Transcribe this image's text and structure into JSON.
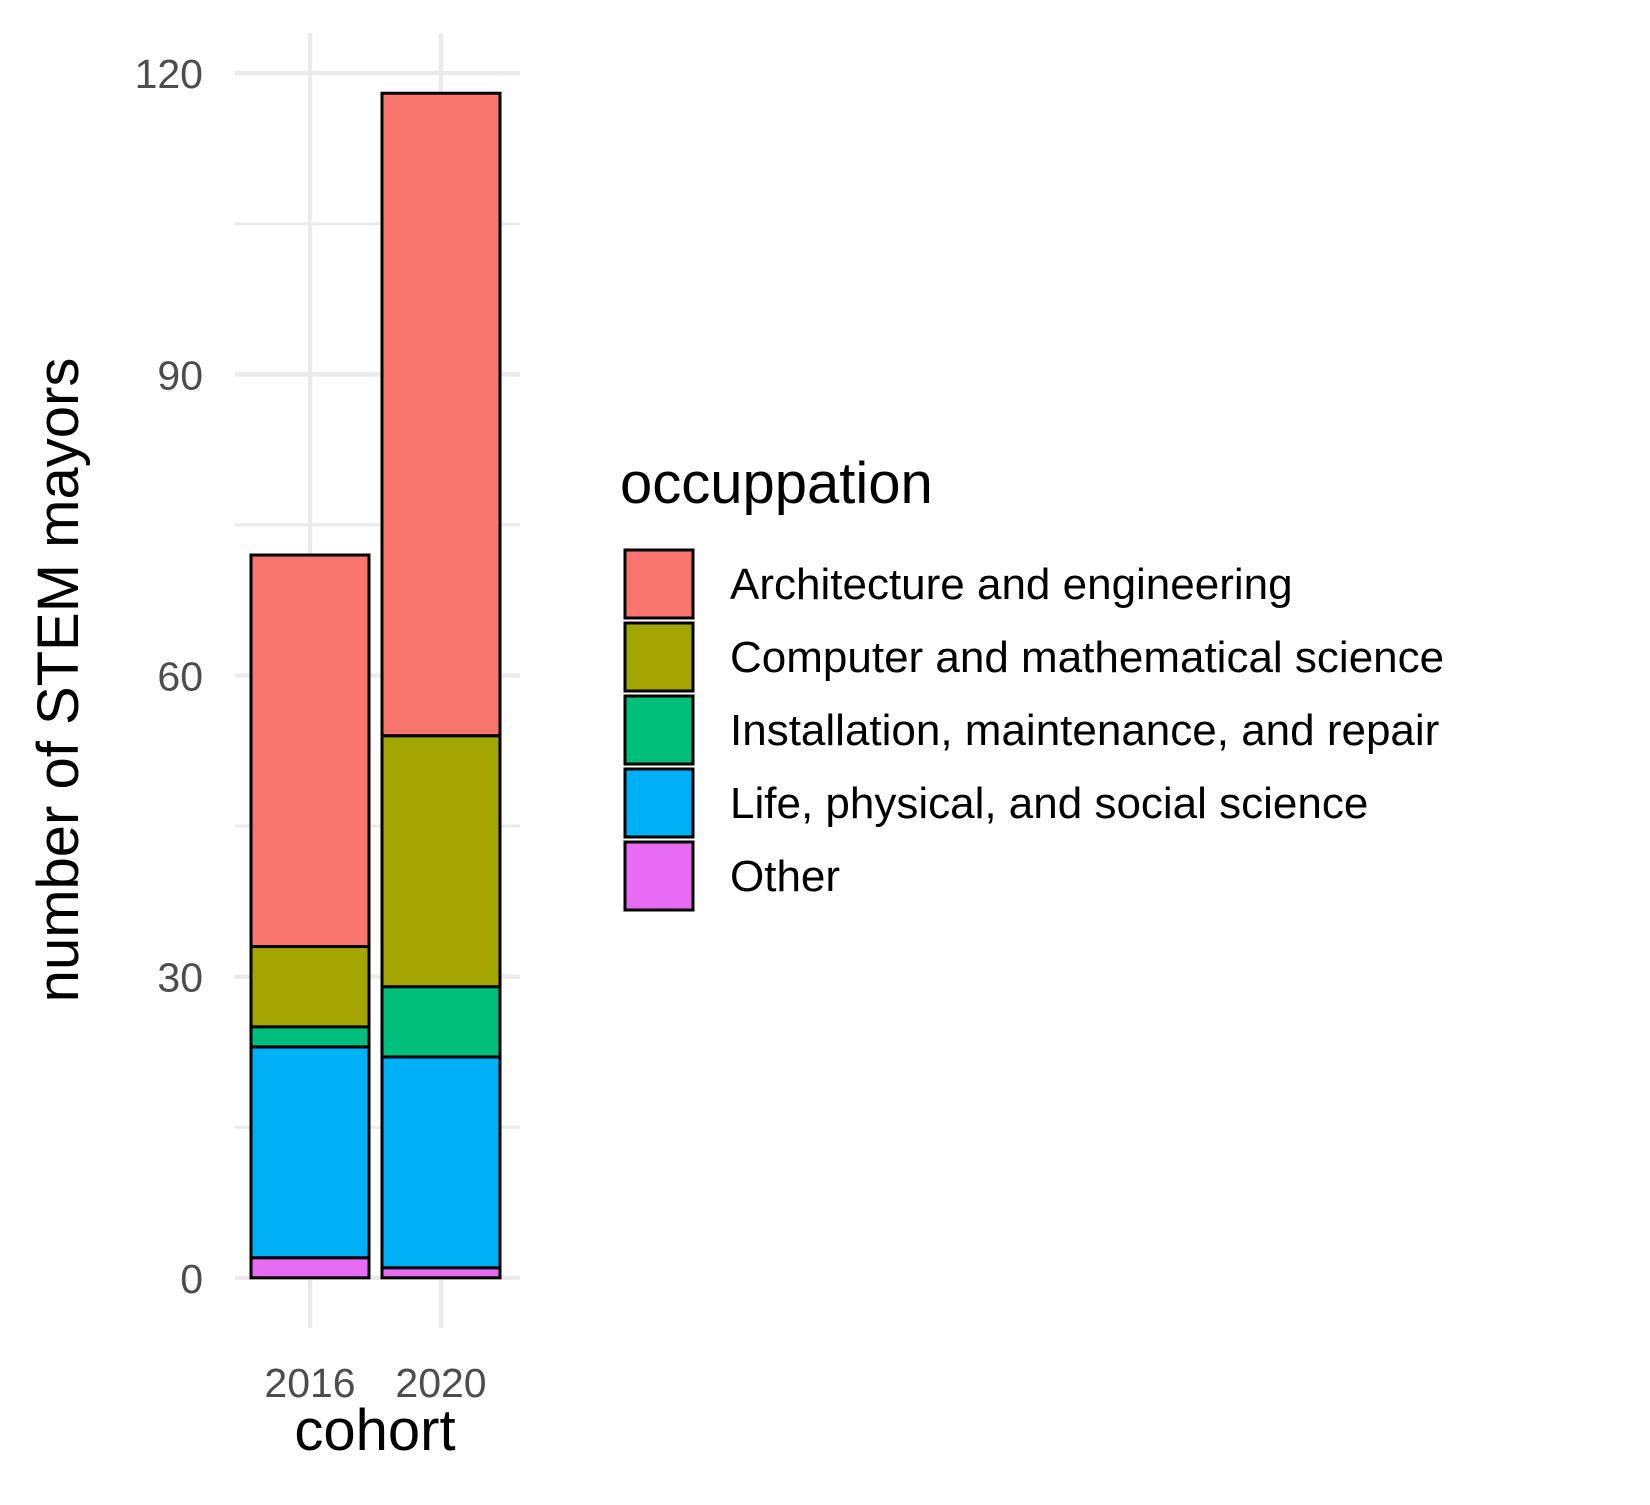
{
  "chart_data": {
    "type": "bar",
    "stacked": true,
    "xlabel": "cohort",
    "ylabel": "number of STEM mayors",
    "ylim": [
      -5,
      124
    ],
    "yticks": [
      0,
      30,
      60,
      90,
      120
    ],
    "ytick_labels": [
      "0",
      "30",
      "60",
      "90",
      "120"
    ],
    "minor_yticks": [
      15,
      45,
      75,
      105
    ],
    "categories": [
      "2016",
      "2020"
    ],
    "grid": true,
    "legend": {
      "title": "occuppation",
      "position": "right"
    },
    "series": [
      {
        "name": "Architecture and engineering",
        "color": "#F8766D",
        "values": [
          39,
          64
        ]
      },
      {
        "name": "Computer and mathematical science",
        "color": "#A3A500",
        "values": [
          8,
          25
        ]
      },
      {
        "name": "Installation, maintenance, and repair",
        "color": "#00BF7D",
        "values": [
          2,
          7
        ]
      },
      {
        "name": "Life, physical, and social science",
        "color": "#00B0F6",
        "values": [
          21,
          21
        ]
      },
      {
        "name": "Other",
        "color": "#E76BF3",
        "values": [
          2,
          1
        ]
      }
    ]
  }
}
